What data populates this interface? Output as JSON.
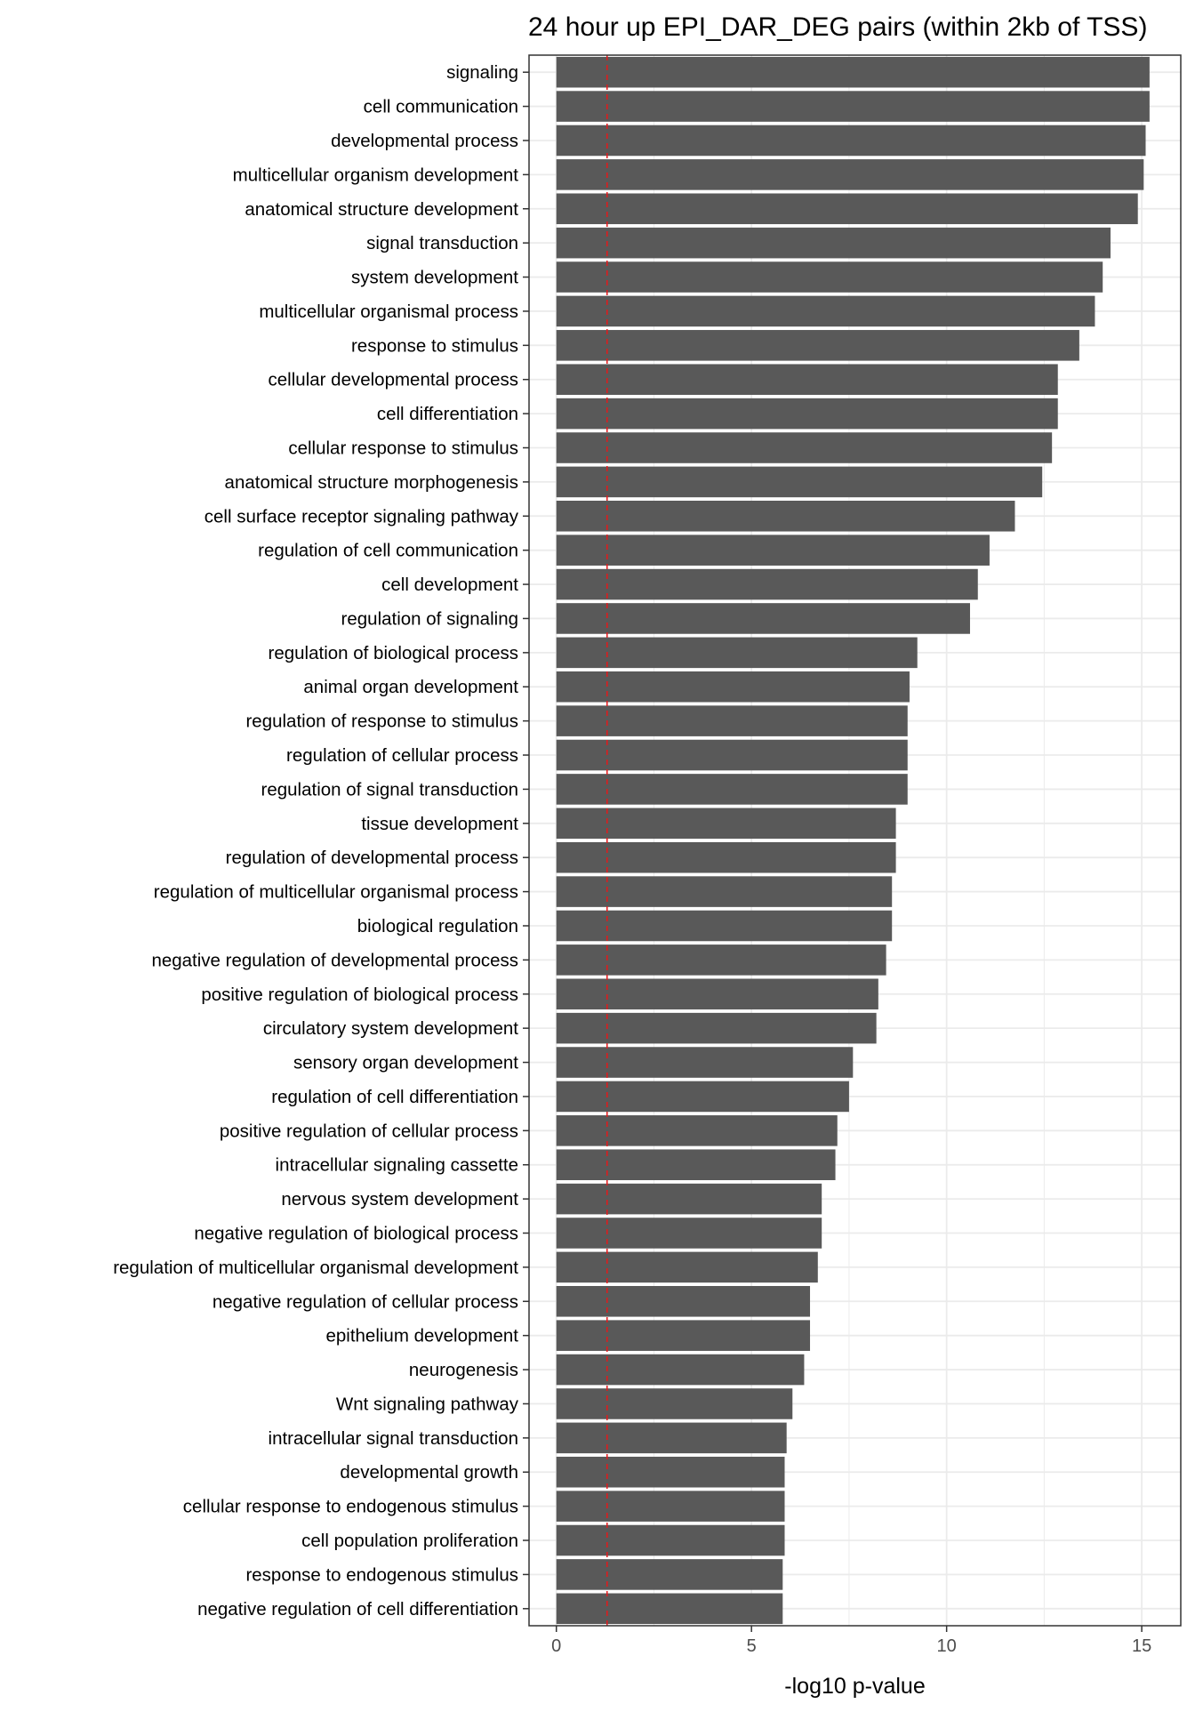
{
  "chart_data": {
    "type": "bar",
    "orientation": "horizontal",
    "title": "24 hour up EPI_DAR_DEG pairs (within 2kb of TSS)",
    "xlabel": "-log10 p-value",
    "ylabel": "",
    "xlim": [
      -0.7,
      16.0
    ],
    "xticks": [
      0,
      5,
      10,
      15
    ],
    "grid": true,
    "legend": "none",
    "threshold_line": {
      "value": 1.3,
      "style": "dashed",
      "color": "#e31a1c"
    },
    "colors": {
      "bar": "#595959",
      "grid": "#ebebeb",
      "panel_border": "#333333",
      "threshold": "#e31a1c"
    },
    "categories": [
      "signaling",
      "cell communication",
      "developmental process",
      "multicellular organism development",
      "anatomical structure development",
      "signal transduction",
      "system development",
      "multicellular organismal process",
      "response to stimulus",
      "cellular developmental process",
      "cell differentiation",
      "cellular response to stimulus",
      "anatomical structure morphogenesis",
      "cell surface receptor signaling pathway",
      "regulation of cell communication",
      "cell development",
      "regulation of signaling",
      "regulation of biological process",
      "animal organ development",
      "regulation of response to stimulus",
      "regulation of cellular process",
      "regulation of signal transduction",
      "tissue development",
      "regulation of developmental process",
      "regulation of multicellular organismal process",
      "biological regulation",
      "negative regulation of developmental process",
      "positive regulation of biological process",
      "circulatory system development",
      "sensory organ development",
      "regulation of cell differentiation",
      "positive regulation of cellular process",
      "intracellular signaling cassette",
      "nervous system development",
      "negative regulation of biological process",
      "regulation of multicellular organismal development",
      "negative regulation of cellular process",
      "epithelium development",
      "neurogenesis",
      "Wnt signaling pathway",
      "intracellular signal transduction",
      "developmental growth",
      "cellular response to endogenous stimulus",
      "cell population proliferation",
      "response to endogenous stimulus",
      "negative regulation of cell differentiation"
    ],
    "values": [
      15.2,
      15.2,
      15.1,
      15.05,
      14.9,
      14.2,
      14.0,
      13.8,
      13.4,
      12.85,
      12.85,
      12.7,
      12.45,
      11.75,
      11.1,
      10.8,
      10.6,
      9.25,
      9.05,
      9.0,
      9.0,
      9.0,
      8.7,
      8.7,
      8.6,
      8.6,
      8.45,
      8.25,
      8.2,
      7.6,
      7.5,
      7.2,
      7.15,
      6.8,
      6.8,
      6.7,
      6.5,
      6.5,
      6.35,
      6.05,
      5.9,
      5.85,
      5.85,
      5.85,
      5.8,
      5.8
    ]
  }
}
